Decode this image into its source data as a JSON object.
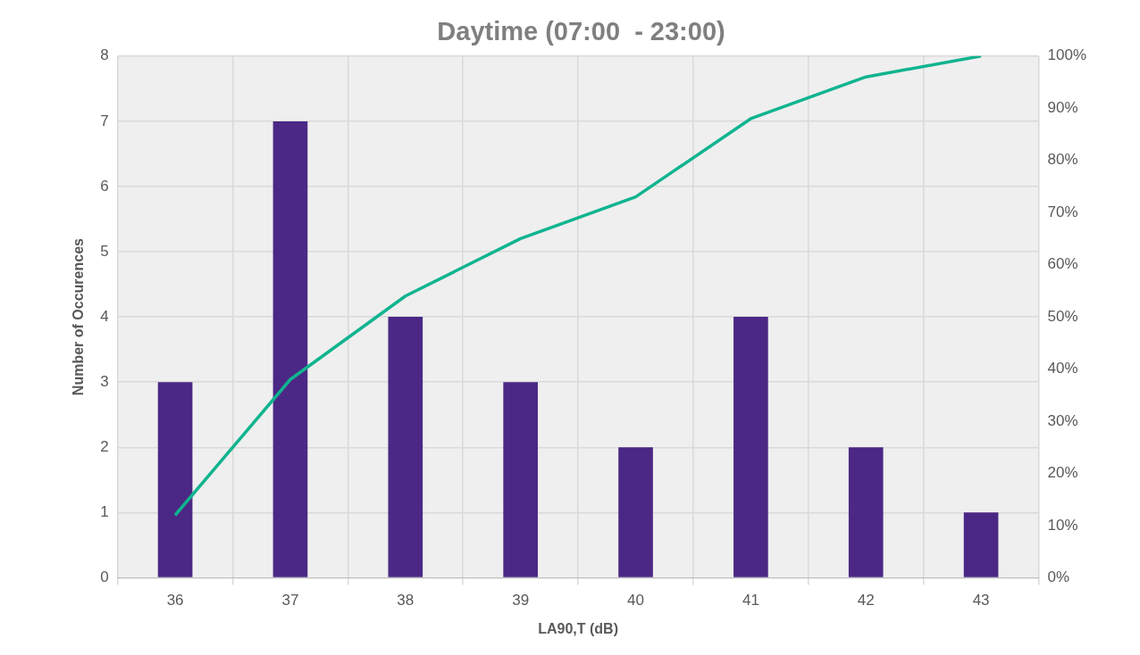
{
  "chart_data": {
    "type": "bar",
    "title": "Daytime (07:00  - 23:00)",
    "xlabel": "LA90,T (dB)",
    "ylabel": "Number of Occurences",
    "categories": [
      "36",
      "37",
      "38",
      "39",
      "40",
      "41",
      "42",
      "43"
    ],
    "series": [
      {
        "color": "#4b2885",
        "values": [
          3,
          7,
          4,
          3,
          2,
          4,
          2,
          1
        ]
      },
      {
        "type": "line",
        "axis": "y2",
        "color": "#10b48f",
        "values": [
          12,
          38,
          54,
          65,
          73,
          88,
          96,
          100
        ]
      }
    ],
    "ylim": [
      0,
      8
    ],
    "yticks": [
      0,
      1,
      2,
      3,
      4,
      5,
      6,
      7,
      8
    ],
    "y2lim": [
      0,
      100
    ],
    "y2ticks": [
      {
        "value": 0,
        "label": "0%"
      },
      {
        "value": 10,
        "label": "10%"
      },
      {
        "value": 20,
        "label": "20%"
      },
      {
        "value": 30,
        "label": "30%"
      },
      {
        "value": 40,
        "label": "40%"
      },
      {
        "value": 50,
        "label": "50%"
      },
      {
        "value": 60,
        "label": "60%"
      },
      {
        "value": 70,
        "label": "70%"
      },
      {
        "value": 80,
        "label": "80%"
      },
      {
        "value": 90,
        "label": "90%"
      },
      {
        "value": 100,
        "label": "100%"
      }
    ],
    "grid": true,
    "legend": false,
    "marker": "none",
    "line_style": "solid"
  }
}
